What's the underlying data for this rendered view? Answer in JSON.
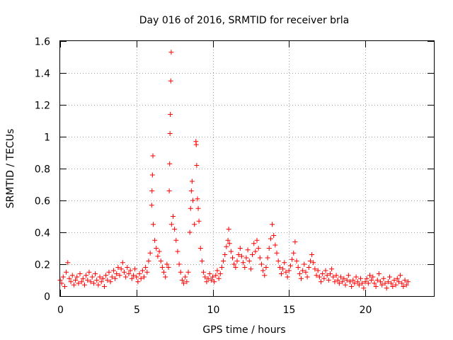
{
  "chart_data": {
    "type": "scatter",
    "title": "Day 016 of 2016, SRMTID for receiver brla",
    "xlabel": "GPS time / hours",
    "ylabel": "SRMTID / TECUs",
    "xlim": [
      0,
      24.5
    ],
    "ylim": [
      0,
      1.6
    ],
    "x_ticks": [
      0,
      5,
      10,
      15,
      20
    ],
    "x_tick_labels": [
      "0",
      "5",
      "10",
      "15",
      "20"
    ],
    "y_ticks": [
      0,
      0.2,
      0.4,
      0.6,
      0.8,
      1.0,
      1.2,
      1.4,
      1.6
    ],
    "y_tick_labels": [
      "0",
      "0.2",
      "0.4",
      "0.6",
      "0.8",
      "1",
      "1.2",
      "1.4",
      "1.6"
    ],
    "grid": true,
    "marker": "plus",
    "color": "#ff0000",
    "series": [
      {
        "name": "SRMTID",
        "points": [
          [
            0.0,
            0.1
          ],
          [
            0.1,
            0.08
          ],
          [
            0.2,
            0.12
          ],
          [
            0.3,
            0.06
          ],
          [
            0.4,
            0.15
          ],
          [
            0.5,
            0.21
          ],
          [
            0.6,
            0.11
          ],
          [
            0.7,
            0.09
          ],
          [
            0.8,
            0.13
          ],
          [
            0.9,
            0.07
          ],
          [
            1.0,
            0.1
          ],
          [
            1.1,
            0.12
          ],
          [
            1.2,
            0.08
          ],
          [
            1.3,
            0.14
          ],
          [
            1.4,
            0.09
          ],
          [
            1.5,
            0.11
          ],
          [
            1.6,
            0.07
          ],
          [
            1.7,
            0.13
          ],
          [
            1.8,
            0.1
          ],
          [
            1.9,
            0.15
          ],
          [
            2.0,
            0.09
          ],
          [
            2.1,
            0.12
          ],
          [
            2.2,
            0.08
          ],
          [
            2.3,
            0.14
          ],
          [
            2.4,
            0.1
          ],
          [
            2.5,
            0.07
          ],
          [
            2.6,
            0.12
          ],
          [
            2.7,
            0.09
          ],
          [
            2.8,
            0.11
          ],
          [
            2.9,
            0.06
          ],
          [
            3.0,
            0.13
          ],
          [
            3.1,
            0.1
          ],
          [
            3.2,
            0.15
          ],
          [
            3.3,
            0.09
          ],
          [
            3.4,
            0.12
          ],
          [
            3.5,
            0.16
          ],
          [
            3.6,
            0.11
          ],
          [
            3.7,
            0.14
          ],
          [
            3.8,
            0.18
          ],
          [
            3.9,
            0.13
          ],
          [
            4.0,
            0.17
          ],
          [
            4.1,
            0.21
          ],
          [
            4.2,
            0.15
          ],
          [
            4.3,
            0.12
          ],
          [
            4.4,
            0.18
          ],
          [
            4.5,
            0.14
          ],
          [
            4.6,
            0.16
          ],
          [
            4.7,
            0.11
          ],
          [
            4.8,
            0.13
          ],
          [
            4.9,
            0.17
          ],
          [
            5.0,
            0.12
          ],
          [
            5.1,
            0.09
          ],
          [
            5.2,
            0.14
          ],
          [
            5.3,
            0.11
          ],
          [
            5.4,
            0.16
          ],
          [
            5.5,
            0.12
          ],
          [
            5.6,
            0.18
          ],
          [
            5.7,
            0.15
          ],
          [
            5.8,
            0.22
          ],
          [
            5.9,
            0.27
          ],
          [
            6.0,
            0.57
          ],
          [
            6.02,
            0.66
          ],
          [
            6.05,
            0.76
          ],
          [
            6.08,
            0.88
          ],
          [
            6.1,
            0.45
          ],
          [
            6.2,
            0.35
          ],
          [
            6.3,
            0.3
          ],
          [
            6.4,
            0.25
          ],
          [
            6.5,
            0.28
          ],
          [
            6.6,
            0.22
          ],
          [
            6.7,
            0.18
          ],
          [
            6.8,
            0.15
          ],
          [
            6.9,
            0.12
          ],
          [
            7.0,
            0.2
          ],
          [
            7.1,
            0.18
          ],
          [
            7.15,
            0.66
          ],
          [
            7.18,
            0.83
          ],
          [
            7.2,
            1.02
          ],
          [
            7.22,
            1.14
          ],
          [
            7.25,
            1.35
          ],
          [
            7.28,
            1.53
          ],
          [
            7.3,
            0.45
          ],
          [
            7.4,
            0.5
          ],
          [
            7.5,
            0.42
          ],
          [
            7.6,
            0.35
          ],
          [
            7.7,
            0.28
          ],
          [
            7.8,
            0.2
          ],
          [
            7.9,
            0.15
          ],
          [
            8.0,
            0.1
          ],
          [
            8.1,
            0.08
          ],
          [
            8.2,
            0.12
          ],
          [
            8.3,
            0.09
          ],
          [
            8.4,
            0.15
          ],
          [
            8.5,
            0.4
          ],
          [
            8.55,
            0.55
          ],
          [
            8.6,
            0.66
          ],
          [
            8.65,
            0.72
          ],
          [
            8.7,
            0.6
          ],
          [
            8.8,
            0.45
          ],
          [
            8.9,
            0.97
          ],
          [
            8.92,
            0.95
          ],
          [
            8.95,
            0.82
          ],
          [
            9.0,
            0.61
          ],
          [
            9.05,
            0.55
          ],
          [
            9.1,
            0.47
          ],
          [
            9.2,
            0.3
          ],
          [
            9.3,
            0.22
          ],
          [
            9.4,
            0.15
          ],
          [
            9.5,
            0.12
          ],
          [
            9.6,
            0.09
          ],
          [
            9.7,
            0.11
          ],
          [
            9.8,
            0.14
          ],
          [
            9.9,
            0.1
          ],
          [
            10.0,
            0.12
          ],
          [
            10.1,
            0.09
          ],
          [
            10.2,
            0.13
          ],
          [
            10.3,
            0.16
          ],
          [
            10.4,
            0.11
          ],
          [
            10.5,
            0.14
          ],
          [
            10.6,
            0.18
          ],
          [
            10.7,
            0.22
          ],
          [
            10.8,
            0.26
          ],
          [
            10.9,
            0.31
          ],
          [
            11.0,
            0.35
          ],
          [
            11.05,
            0.42
          ],
          [
            11.1,
            0.33
          ],
          [
            11.2,
            0.28
          ],
          [
            11.3,
            0.24
          ],
          [
            11.4,
            0.2
          ],
          [
            11.5,
            0.18
          ],
          [
            11.6,
            0.22
          ],
          [
            11.7,
            0.26
          ],
          [
            11.8,
            0.3
          ],
          [
            11.9,
            0.25
          ],
          [
            12.0,
            0.21
          ],
          [
            12.1,
            0.18
          ],
          [
            12.2,
            0.24
          ],
          [
            12.3,
            0.29
          ],
          [
            12.4,
            0.22
          ],
          [
            12.5,
            0.17
          ],
          [
            12.6,
            0.26
          ],
          [
            12.7,
            0.33
          ],
          [
            12.8,
            0.28
          ],
          [
            12.9,
            0.35
          ],
          [
            13.0,
            0.3
          ],
          [
            13.1,
            0.24
          ],
          [
            13.2,
            0.2
          ],
          [
            13.3,
            0.16
          ],
          [
            13.4,
            0.13
          ],
          [
            13.5,
            0.18
          ],
          [
            13.6,
            0.24
          ],
          [
            13.7,
            0.3
          ],
          [
            13.8,
            0.36
          ],
          [
            13.9,
            0.45
          ],
          [
            14.0,
            0.38
          ],
          [
            14.1,
            0.32
          ],
          [
            14.2,
            0.27
          ],
          [
            14.3,
            0.22
          ],
          [
            14.4,
            0.18
          ],
          [
            14.5,
            0.14
          ],
          [
            14.6,
            0.17
          ],
          [
            14.7,
            0.21
          ],
          [
            14.8,
            0.15
          ],
          [
            14.9,
            0.12
          ],
          [
            15.0,
            0.16
          ],
          [
            15.1,
            0.19
          ],
          [
            15.2,
            0.23
          ],
          [
            15.3,
            0.27
          ],
          [
            15.4,
            0.34
          ],
          [
            15.5,
            0.22
          ],
          [
            15.6,
            0.18
          ],
          [
            15.7,
            0.14
          ],
          [
            15.8,
            0.11
          ],
          [
            15.9,
            0.16
          ],
          [
            16.0,
            0.2
          ],
          [
            16.1,
            0.15
          ],
          [
            16.2,
            0.12
          ],
          [
            16.3,
            0.18
          ],
          [
            16.4,
            0.22
          ],
          [
            16.5,
            0.26
          ],
          [
            16.6,
            0.21
          ],
          [
            16.7,
            0.17
          ],
          [
            16.8,
            0.13
          ],
          [
            16.9,
            0.16
          ],
          [
            17.0,
            0.12
          ],
          [
            17.1,
            0.09
          ],
          [
            17.2,
            0.14
          ],
          [
            17.3,
            0.11
          ],
          [
            17.4,
            0.16
          ],
          [
            17.5,
            0.13
          ],
          [
            17.6,
            0.1
          ],
          [
            17.7,
            0.14
          ],
          [
            17.8,
            0.17
          ],
          [
            17.9,
            0.12
          ],
          [
            18.0,
            0.09
          ],
          [
            18.1,
            0.13
          ],
          [
            18.2,
            0.1
          ],
          [
            18.3,
            0.08
          ],
          [
            18.4,
            0.12
          ],
          [
            18.5,
            0.09
          ],
          [
            18.6,
            0.11
          ],
          [
            18.7,
            0.07
          ],
          [
            18.8,
            0.1
          ],
          [
            18.9,
            0.13
          ],
          [
            19.0,
            0.09
          ],
          [
            19.1,
            0.06
          ],
          [
            19.2,
            0.1
          ],
          [
            19.3,
            0.08
          ],
          [
            19.4,
            0.12
          ],
          [
            19.5,
            0.09
          ],
          [
            19.6,
            0.07
          ],
          [
            19.7,
            0.11
          ],
          [
            19.8,
            0.08
          ],
          [
            19.9,
            0.05
          ],
          [
            20.0,
            0.09
          ],
          [
            20.1,
            0.11
          ],
          [
            20.2,
            0.08
          ],
          [
            20.3,
            0.13
          ],
          [
            20.4,
            0.1
          ],
          [
            20.5,
            0.12
          ],
          [
            20.6,
            0.08
          ],
          [
            20.7,
            0.06
          ],
          [
            20.8,
            0.1
          ],
          [
            20.9,
            0.14
          ],
          [
            21.0,
            0.09
          ],
          [
            21.1,
            0.07
          ],
          [
            21.2,
            0.11
          ],
          [
            21.3,
            0.08
          ],
          [
            21.4,
            0.05
          ],
          [
            21.5,
            0.09
          ],
          [
            21.6,
            0.12
          ],
          [
            21.7,
            0.08
          ],
          [
            21.8,
            0.06
          ],
          [
            21.9,
            0.1
          ],
          [
            22.0,
            0.07
          ],
          [
            22.1,
            0.11
          ],
          [
            22.2,
            0.09
          ],
          [
            22.3,
            0.13
          ],
          [
            22.4,
            0.08
          ],
          [
            22.5,
            0.06
          ],
          [
            22.6,
            0.1
          ],
          [
            22.7,
            0.07
          ],
          [
            22.8,
            0.09
          ]
        ]
      }
    ]
  }
}
